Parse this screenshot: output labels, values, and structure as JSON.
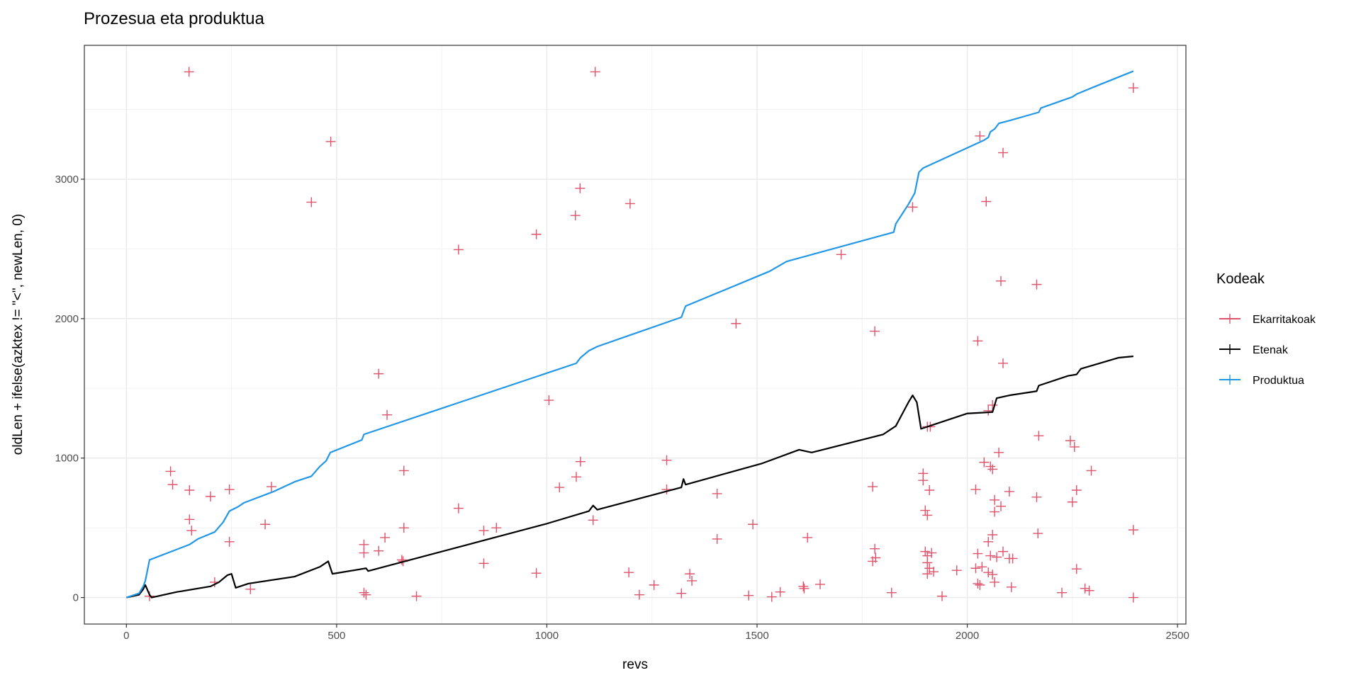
{
  "chart_data": {
    "type": "line+scatter",
    "title": "Prozesua eta produktua",
    "xlabel": "revs",
    "ylabel": "oldLen + ifelse(azktex != \"<\", newLen, 0)",
    "xlim": [
      -100,
      2520
    ],
    "ylim": [
      -190,
      3960
    ],
    "x_ticks": [
      0,
      500,
      1000,
      1500,
      2000,
      2500
    ],
    "y_ticks": [
      0,
      1000,
      2000,
      3000
    ],
    "grid": true,
    "legend": {
      "title": "Kodeak",
      "placement": "right"
    },
    "series": [
      {
        "name": "Ekarritakoak",
        "kind": "scatter",
        "marker": "plus",
        "color": "#DF536B",
        "points": [
          [
            149,
            3770
          ],
          [
            486,
            3270
          ],
          [
            440,
            2835
          ],
          [
            1115,
            3770
          ],
          [
            1079,
            2935
          ],
          [
            1068,
            2740
          ],
          [
            1198,
            2825
          ],
          [
            975,
            2605
          ],
          [
            790,
            2495
          ],
          [
            1700,
            2460
          ],
          [
            1870,
            2800
          ],
          [
            2030,
            3310
          ],
          [
            2045,
            2840
          ],
          [
            2085,
            3190
          ],
          [
            2080,
            2270
          ],
          [
            2165,
            2245
          ],
          [
            1450,
            1965
          ],
          [
            1780,
            1910
          ],
          [
            2025,
            1840
          ],
          [
            2085,
            1680
          ],
          [
            2395,
            3655
          ],
          [
            600,
            1605
          ],
          [
            620,
            1310
          ],
          [
            1005,
            1415
          ],
          [
            105,
            905
          ],
          [
            110,
            810
          ],
          [
            150,
            770
          ],
          [
            150,
            560
          ],
          [
            155,
            480
          ],
          [
            200,
            725
          ],
          [
            245,
            775
          ],
          [
            245,
            400
          ],
          [
            345,
            795
          ],
          [
            330,
            525
          ],
          [
            660,
            910
          ],
          [
            1080,
            975
          ],
          [
            1070,
            865
          ],
          [
            1030,
            790
          ],
          [
            1285,
            985
          ],
          [
            1285,
            775
          ],
          [
            1405,
            745
          ],
          [
            790,
            640
          ],
          [
            850,
            480
          ],
          [
            880,
            500
          ],
          [
            660,
            500
          ],
          [
            615,
            430
          ],
          [
            600,
            335
          ],
          [
            565,
            320
          ],
          [
            565,
            380
          ],
          [
            565,
            35
          ],
          [
            570,
            20
          ],
          [
            850,
            245
          ],
          [
            655,
            270
          ],
          [
            658,
            260
          ],
          [
            975,
            175
          ],
          [
            1110,
            555
          ],
          [
            1405,
            420
          ],
          [
            1490,
            525
          ],
          [
            1620,
            430
          ],
          [
            1195,
            180
          ],
          [
            1220,
            20
          ],
          [
            1255,
            90
          ],
          [
            1340,
            170
          ],
          [
            1345,
            120
          ],
          [
            1320,
            30
          ],
          [
            1480,
            15
          ],
          [
            1535,
            5
          ],
          [
            1555,
            40
          ],
          [
            1610,
            80
          ],
          [
            1612,
            65
          ],
          [
            1650,
            95
          ],
          [
            1820,
            35
          ],
          [
            1940,
            10
          ],
          [
            1975,
            195
          ],
          [
            1775,
            795
          ],
          [
            1780,
            350
          ],
          [
            1775,
            260
          ],
          [
            1782,
            285
          ],
          [
            1895,
            890
          ],
          [
            1895,
            840
          ],
          [
            1900,
            625
          ],
          [
            1905,
            590
          ],
          [
            1910,
            770
          ],
          [
            1900,
            330
          ],
          [
            1905,
            300
          ],
          [
            1905,
            250
          ],
          [
            1910,
            210
          ],
          [
            1905,
            170
          ],
          [
            1915,
            320
          ],
          [
            1920,
            185
          ],
          [
            1905,
            1225
          ],
          [
            1912,
            1225
          ],
          [
            2020,
            775
          ],
          [
            2025,
            315
          ],
          [
            2020,
            210
          ],
          [
            2025,
            100
          ],
          [
            2030,
            90
          ],
          [
            2035,
            220
          ],
          [
            2040,
            970
          ],
          [
            2055,
            940
          ],
          [
            2060,
            920
          ],
          [
            2050,
            1340
          ],
          [
            2060,
            1380
          ],
          [
            2075,
            1040
          ],
          [
            2065,
            700
          ],
          [
            2065,
            615
          ],
          [
            2080,
            655
          ],
          [
            2050,
            400
          ],
          [
            2060,
            450
          ],
          [
            2055,
            300
          ],
          [
            2060,
            165
          ],
          [
            2065,
            110
          ],
          [
            2070,
            290
          ],
          [
            2050,
            180
          ],
          [
            2085,
            330
          ],
          [
            2100,
            760
          ],
          [
            2100,
            280
          ],
          [
            2108,
            280
          ],
          [
            2105,
            75
          ],
          [
            2165,
            720
          ],
          [
            2168,
            460
          ],
          [
            2170,
            1160
          ],
          [
            2245,
            1125
          ],
          [
            2255,
            1080
          ],
          [
            2250,
            685
          ],
          [
            2260,
            770
          ],
          [
            2260,
            205
          ],
          [
            2225,
            35
          ],
          [
            2280,
            65
          ],
          [
            2290,
            50
          ],
          [
            2295,
            910
          ],
          [
            2395,
            485
          ],
          [
            2395,
            0
          ],
          [
            55,
            10
          ],
          [
            210,
            110
          ],
          [
            295,
            60
          ],
          [
            690,
            10
          ]
        ]
      },
      {
        "name": "Etenak",
        "kind": "line",
        "color": "#000000",
        "points": [
          [
            0,
            0
          ],
          [
            30,
            20
          ],
          [
            40,
            60
          ],
          [
            45,
            90
          ],
          [
            55,
            20
          ],
          [
            60,
            0
          ],
          [
            120,
            40
          ],
          [
            200,
            80
          ],
          [
            220,
            110
          ],
          [
            240,
            160
          ],
          [
            250,
            170
          ],
          [
            260,
            70
          ],
          [
            290,
            100
          ],
          [
            400,
            150
          ],
          [
            460,
            220
          ],
          [
            480,
            260
          ],
          [
            490,
            170
          ],
          [
            570,
            210
          ],
          [
            575,
            190
          ],
          [
            800,
            370
          ],
          [
            1000,
            530
          ],
          [
            1100,
            620
          ],
          [
            1110,
            660
          ],
          [
            1120,
            630
          ],
          [
            1320,
            790
          ],
          [
            1325,
            850
          ],
          [
            1330,
            810
          ],
          [
            1510,
            960
          ],
          [
            1600,
            1060
          ],
          [
            1630,
            1040
          ],
          [
            1800,
            1170
          ],
          [
            1830,
            1230
          ],
          [
            1860,
            1400
          ],
          [
            1870,
            1450
          ],
          [
            1880,
            1400
          ],
          [
            1890,
            1210
          ],
          [
            1910,
            1230
          ],
          [
            2000,
            1320
          ],
          [
            2060,
            1330
          ],
          [
            2070,
            1430
          ],
          [
            2100,
            1450
          ],
          [
            2165,
            1480
          ],
          [
            2170,
            1520
          ],
          [
            2240,
            1590
          ],
          [
            2260,
            1600
          ],
          [
            2270,
            1640
          ],
          [
            2360,
            1720
          ],
          [
            2395,
            1730
          ]
        ]
      },
      {
        "name": "Produktua",
        "kind": "line",
        "color": "#2297E6",
        "points": [
          [
            0,
            0
          ],
          [
            30,
            30
          ],
          [
            40,
            80
          ],
          [
            45,
            120
          ],
          [
            55,
            270
          ],
          [
            150,
            380
          ],
          [
            170,
            420
          ],
          [
            210,
            470
          ],
          [
            230,
            540
          ],
          [
            245,
            620
          ],
          [
            265,
            650
          ],
          [
            280,
            680
          ],
          [
            350,
            760
          ],
          [
            400,
            830
          ],
          [
            440,
            870
          ],
          [
            460,
            940
          ],
          [
            475,
            980
          ],
          [
            485,
            1040
          ],
          [
            560,
            1130
          ],
          [
            565,
            1170
          ],
          [
            1070,
            1680
          ],
          [
            1080,
            1720
          ],
          [
            1100,
            1770
          ],
          [
            1120,
            1800
          ],
          [
            1320,
            2010
          ],
          [
            1330,
            2090
          ],
          [
            1530,
            2340
          ],
          [
            1570,
            2410
          ],
          [
            1825,
            2620
          ],
          [
            1830,
            2680
          ],
          [
            1860,
            2820
          ],
          [
            1875,
            2900
          ],
          [
            1885,
            3050
          ],
          [
            1895,
            3080
          ],
          [
            2040,
            3280
          ],
          [
            2050,
            3300
          ],
          [
            2055,
            3340
          ],
          [
            2065,
            3360
          ],
          [
            2075,
            3400
          ],
          [
            2100,
            3420
          ],
          [
            2170,
            3480
          ],
          [
            2175,
            3510
          ],
          [
            2250,
            3590
          ],
          [
            2260,
            3610
          ],
          [
            2300,
            3660
          ],
          [
            2395,
            3775
          ]
        ]
      }
    ]
  }
}
